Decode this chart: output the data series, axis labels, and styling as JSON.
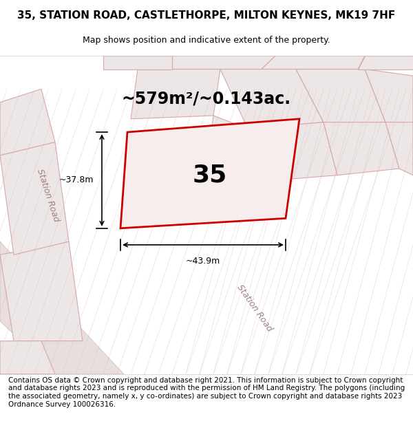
{
  "title": "35, STATION ROAD, CASTLETHORPE, MILTON KEYNES, MK19 7HF",
  "subtitle": "Map shows position and indicative extent of the property.",
  "area_text": "~579m²/~0.143ac.",
  "width_label": "~43.9m",
  "height_label": "~37.8m",
  "number_label": "35",
  "footer": "Contains OS data © Crown copyright and database right 2021. This information is subject to Crown copyright and database rights 2023 and is reproduced with the permission of HM Land Registry. The polygons (including the associated geometry, namely x, y co-ordinates) are subject to Crown copyright and database rights 2023 Ordnance Survey 100026316.",
  "bg_color": "#f0eeee",
  "map_bg": "#f5f0f0",
  "road_color": "#e8d8d8",
  "highlight_color": "#cc0000",
  "highlight_fill": "#f5e8e8",
  "other_poly_color": "#e8c0c0",
  "other_poly_fill": "#ede8e8",
  "title_fontsize": 11,
  "subtitle_fontsize": 9,
  "area_fontsize": 17,
  "number_fontsize": 26,
  "footer_fontsize": 7.5
}
